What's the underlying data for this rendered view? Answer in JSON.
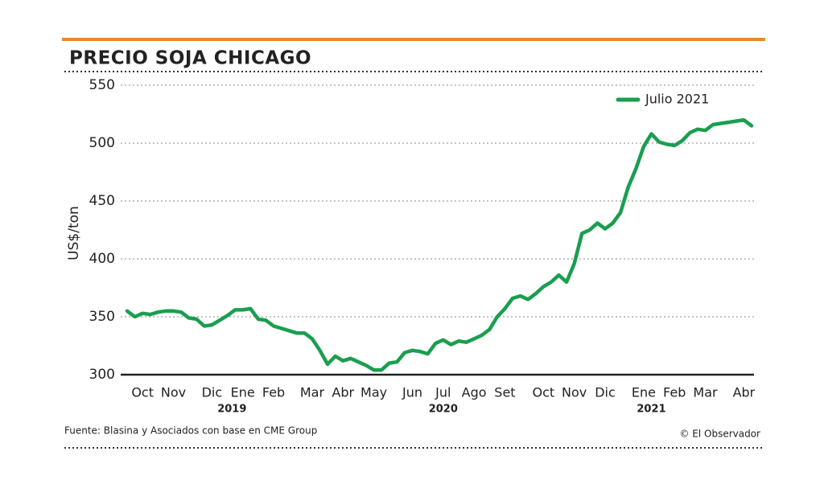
{
  "chart_data": {
    "type": "line",
    "title": "PRECIO SOJA CHICAGO",
    "y_label": "US$/ton",
    "categories": [
      null,
      null,
      "Oct",
      null,
      null,
      null,
      "Nov",
      null,
      null,
      null,
      null,
      "Dic",
      null,
      null,
      null,
      "Ene",
      null,
      null,
      null,
      "Feb",
      null,
      null,
      null,
      null,
      "Mar",
      null,
      null,
      null,
      "Abr",
      null,
      null,
      null,
      "May",
      null,
      null,
      null,
      null,
      "Jun",
      null,
      null,
      null,
      "Jul",
      null,
      null,
      null,
      "Ago",
      null,
      null,
      null,
      "Set",
      null,
      null,
      null,
      null,
      "Oct",
      null,
      null,
      null,
      "Nov",
      null,
      null,
      null,
      "Dic",
      null,
      null,
      null,
      null,
      "Ene",
      null,
      null,
      null,
      "Feb",
      null,
      null,
      null,
      "Mar",
      null,
      null,
      null,
      null,
      "Abr",
      null
    ],
    "year_labels": [
      "2019",
      "2020",
      "2021"
    ],
    "series": [
      {
        "name": "Julio 2021",
        "color": "#1a9e4f",
        "values": [
          355,
          350,
          353,
          352,
          354,
          355,
          355,
          354,
          349,
          348,
          342,
          343,
          347,
          351,
          356,
          356,
          357,
          348,
          347,
          342,
          340,
          338,
          336,
          336,
          331,
          321,
          309,
          316,
          312,
          314,
          311,
          308,
          304,
          304,
          310,
          311,
          319,
          321,
          320,
          318,
          327,
          330,
          326,
          329,
          328,
          331,
          334,
          339,
          350,
          357,
          366,
          368,
          365,
          370,
          376,
          380,
          386,
          380,
          396,
          422,
          425,
          431,
          426,
          431,
          440,
          462,
          478,
          497,
          508,
          501,
          499,
          498,
          502,
          509,
          512,
          511,
          516,
          517,
          518,
          519,
          520,
          515
        ]
      }
    ],
    "ylim": [
      300,
      550
    ],
    "yticks": [
      300,
      350,
      400,
      450,
      500,
      550
    ],
    "grid": true,
    "legend": "top-right",
    "source": "Fuente: Blasina y Asociados con base en CME Group",
    "credit": "© El Observador"
  }
}
